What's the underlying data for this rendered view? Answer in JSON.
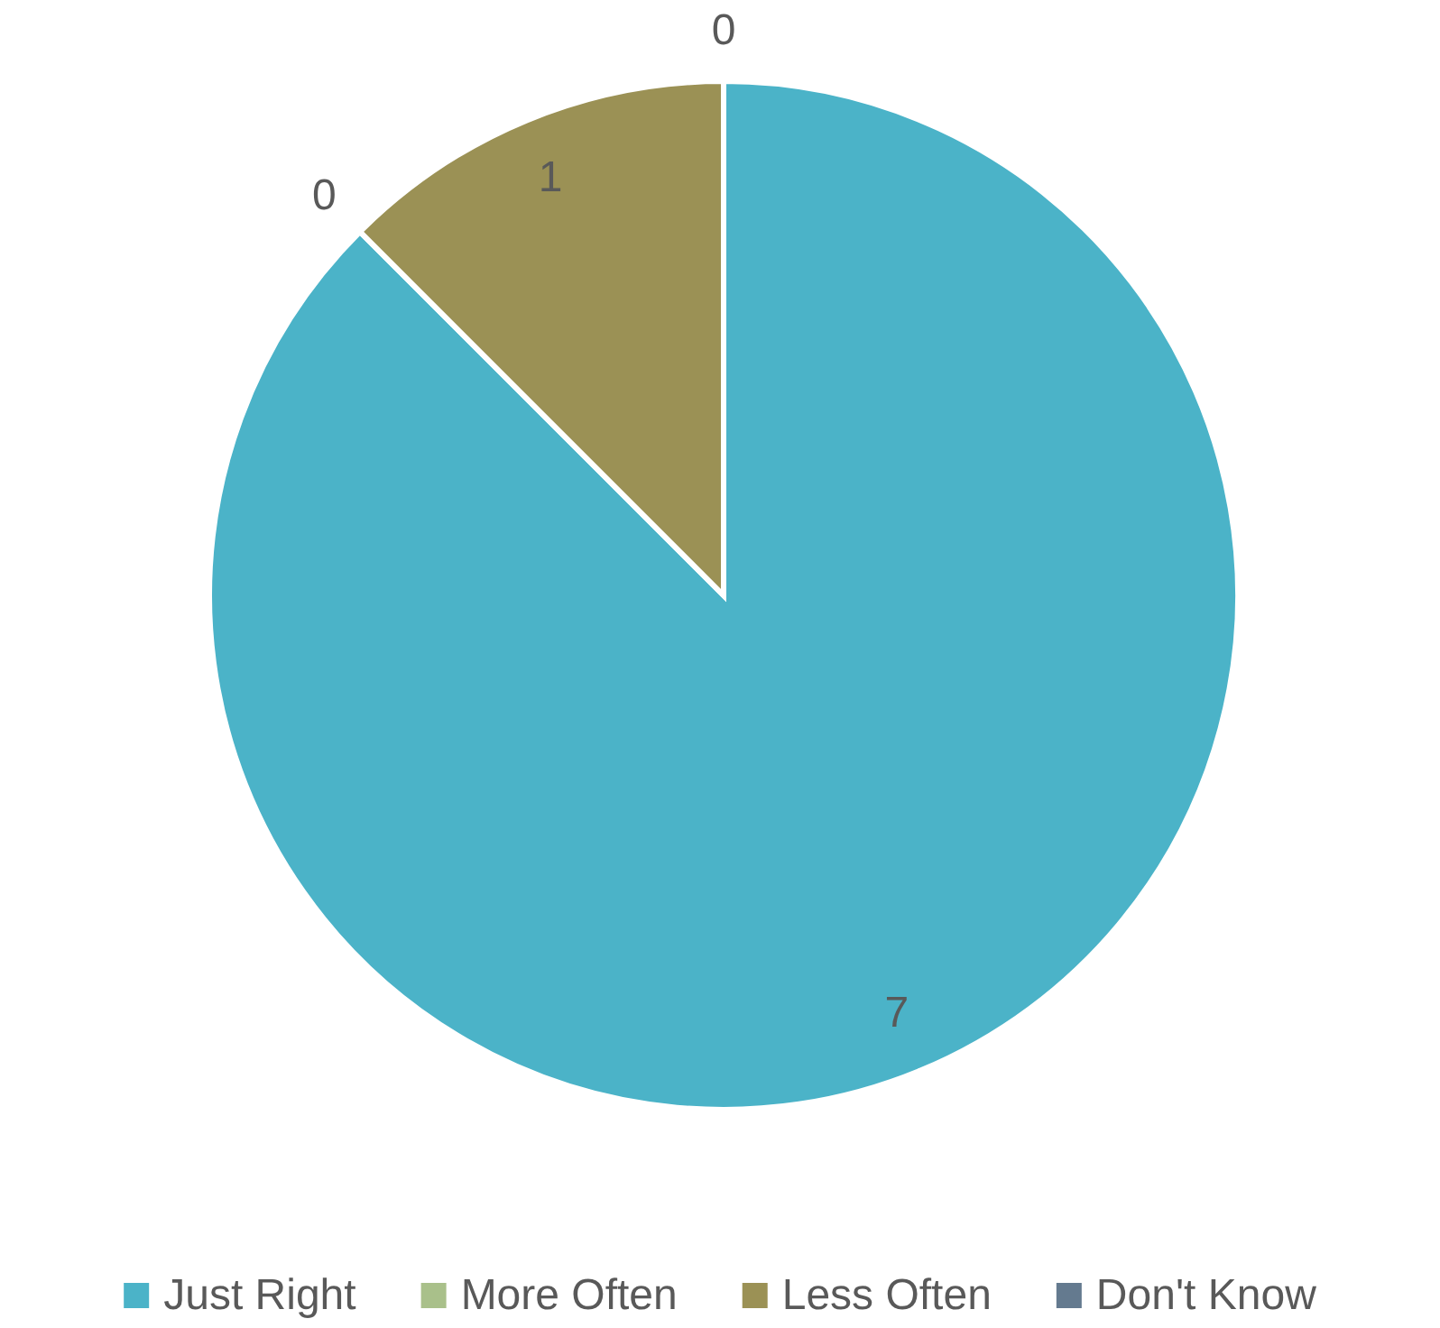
{
  "chart_data": {
    "type": "pie",
    "categories": [
      "Just Right",
      "More Often",
      "Less Often",
      "Don't Know"
    ],
    "values": [
      7,
      0,
      1,
      0
    ],
    "value_labels": [
      "7",
      "0",
      "1",
      "0"
    ],
    "colors": [
      "#4bb3c8",
      "#a9c08a",
      "#9b9155",
      "#647a8f"
    ],
    "legend": "bottom"
  }
}
